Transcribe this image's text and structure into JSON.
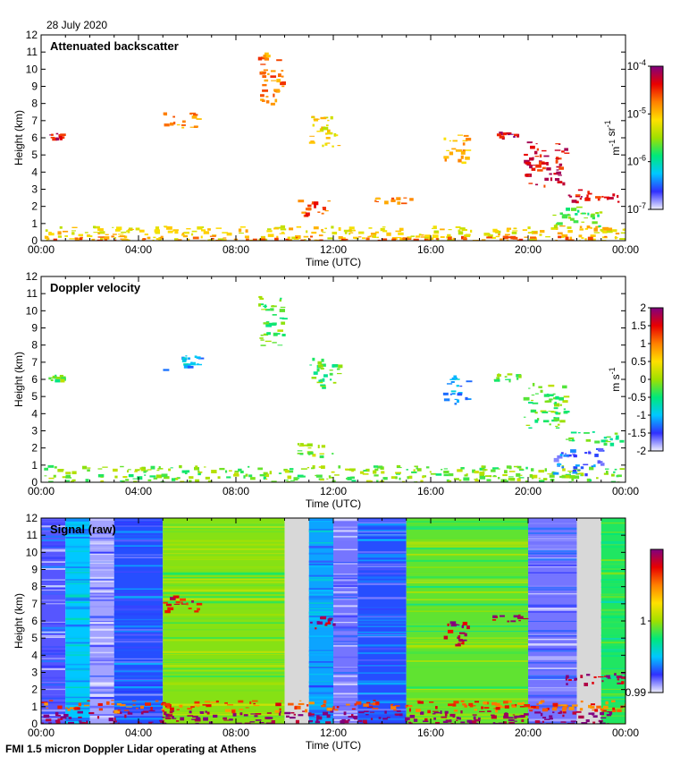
{
  "header": {
    "date": "28 July 2020"
  },
  "footer": {
    "text": "FMI 1.5 micron Doppler Lidar operating at Athens"
  },
  "colors": {
    "background": "#ffffff",
    "missing_data": "#d8d8d8",
    "scale": [
      "#f0f0ff",
      "#3030ff",
      "#00c8ff",
      "#00e87a",
      "#a0e000",
      "#ffe000",
      "#ff8000",
      "#e80000",
      "#800080"
    ]
  },
  "chart_data": [
    {
      "type": "heatmap",
      "title": "Attenuated backscatter",
      "xlabel": "Time (UTC)",
      "ylabel": "Height (km)",
      "xlim": [
        0,
        24
      ],
      "ylim": [
        0,
        12
      ],
      "xticks": [
        "00:00",
        "04:00",
        "08:00",
        "12:00",
        "16:00",
        "20:00",
        "00:00"
      ],
      "yticks": [
        "0",
        "1",
        "2",
        "3",
        "4",
        "5",
        "6",
        "7",
        "8",
        "9",
        "10",
        "11",
        "12"
      ],
      "colorbar": {
        "label": "m-1 sr-1",
        "scale": "log",
        "range": [
          1e-07,
          0.0001
        ],
        "tick_labels": [
          "10-4",
          "10-5",
          "10-6",
          "10-7"
        ]
      },
      "features": [
        {
          "t": [
            0.0,
            24.0
          ],
          "h_bottom": 0.0,
          "h_top": 0.9,
          "level": 0.62
        },
        {
          "t": [
            0.0,
            24.0
          ],
          "h_bottom": 0.0,
          "h_top": 0.3,
          "level": 0.75
        },
        {
          "t": [
            0.3,
            0.8
          ],
          "h_bottom": 6.0,
          "h_top": 6.3,
          "level": 0.9
        },
        {
          "t": [
            5.0,
            6.5
          ],
          "h_bottom": 6.6,
          "h_top": 7.5,
          "level": 0.72
        },
        {
          "t": [
            8.9,
            9.9
          ],
          "h_bottom": 8.0,
          "h_top": 11.0,
          "level": 0.75
        },
        {
          "t": [
            11.0,
            12.2
          ],
          "h_bottom": 5.5,
          "h_top": 7.3,
          "level": 0.62
        },
        {
          "t": [
            10.5,
            12.0
          ],
          "h_bottom": 1.5,
          "h_top": 2.4,
          "level": 0.8
        },
        {
          "t": [
            13.5,
            15.5
          ],
          "h_bottom": 2.2,
          "h_top": 2.6,
          "level": 0.75
        },
        {
          "t": [
            16.5,
            17.5
          ],
          "h_bottom": 4.6,
          "h_top": 6.3,
          "level": 0.7
        },
        {
          "t": [
            18.5,
            19.8
          ],
          "h_bottom": 6.0,
          "h_top": 6.4,
          "level": 0.92
        },
        {
          "t": [
            19.8,
            21.5
          ],
          "h_bottom": 3.2,
          "h_top": 5.8,
          "level": 0.88
        },
        {
          "t": [
            21.5,
            24.0
          ],
          "h_bottom": 2.3,
          "h_top": 3.0,
          "level": 0.88
        },
        {
          "t": [
            21.0,
            23.0
          ],
          "h_bottom": 0.8,
          "h_top": 2.0,
          "level": 0.45
        }
      ]
    },
    {
      "type": "heatmap",
      "title": "Doppler velocity",
      "xlabel": "Time (UTC)",
      "ylabel": "Height (km)",
      "xlim": [
        0,
        24
      ],
      "ylim": [
        0,
        12
      ],
      "xticks": [
        "00:00",
        "04:00",
        "08:00",
        "12:00",
        "16:00",
        "20:00",
        "00:00"
      ],
      "yticks": [
        "0",
        "1",
        "2",
        "3",
        "4",
        "5",
        "6",
        "7",
        "8",
        "9",
        "10",
        "11",
        "12"
      ],
      "colorbar": {
        "label": "m s-1",
        "scale": "linear",
        "range": [
          -2,
          2
        ],
        "tick_labels": [
          "2",
          "1.5",
          "1",
          "0.5",
          "0",
          "-0.5",
          "-1",
          "-1.5",
          "-2"
        ]
      },
      "features": [
        {
          "t": [
            0.0,
            24.0
          ],
          "h_bottom": 0.0,
          "h_top": 1.0,
          "level": 0.47
        },
        {
          "t": [
            0.3,
            0.8
          ],
          "h_bottom": 6.0,
          "h_top": 6.3,
          "level": 0.45
        },
        {
          "t": [
            5.0,
            6.5
          ],
          "h_bottom": 6.6,
          "h_top": 7.5,
          "level": 0.25
        },
        {
          "t": [
            8.9,
            9.9
          ],
          "h_bottom": 8.0,
          "h_top": 11.0,
          "level": 0.45
        },
        {
          "t": [
            11.0,
            12.2
          ],
          "h_bottom": 5.5,
          "h_top": 7.3,
          "level": 0.42
        },
        {
          "t": [
            10.5,
            12.0
          ],
          "h_bottom": 1.5,
          "h_top": 2.4,
          "level": 0.5
        },
        {
          "t": [
            16.5,
            17.5
          ],
          "h_bottom": 4.6,
          "h_top": 6.3,
          "level": 0.22
        },
        {
          "t": [
            18.5,
            19.8
          ],
          "h_bottom": 6.0,
          "h_top": 6.4,
          "level": 0.45
        },
        {
          "t": [
            19.8,
            21.5
          ],
          "h_bottom": 3.2,
          "h_top": 5.8,
          "level": 0.45
        },
        {
          "t": [
            21.5,
            24.0
          ],
          "h_bottom": 2.3,
          "h_top": 3.0,
          "level": 0.4
        },
        {
          "t": [
            21.0,
            23.0
          ],
          "h_bottom": 0.5,
          "h_top": 2.0,
          "level": 0.15
        }
      ]
    },
    {
      "type": "heatmap",
      "title": "Signal (raw)",
      "xlabel": "Time (UTC)",
      "ylabel": "Height (km)",
      "xlim": [
        0,
        24
      ],
      "ylim": [
        0,
        12
      ],
      "xticks": [
        "00:00",
        "04:00",
        "08:00",
        "12:00",
        "16:00",
        "20:00",
        "00:00"
      ],
      "yticks": [
        "0",
        "1",
        "2",
        "3",
        "4",
        "5",
        "6",
        "7",
        "8",
        "9",
        "10",
        "11",
        "12"
      ],
      "colorbar": {
        "label": "",
        "scale": "linear",
        "range": [
          0.99,
          1.01
        ],
        "tick_labels": [
          "1",
          "0.99"
        ]
      },
      "column_bands": [
        {
          "t": [
            0.0,
            1.0
          ],
          "level": 0.1
        },
        {
          "t": [
            1.0,
            2.0
          ],
          "level": 0.25
        },
        {
          "t": [
            2.0,
            3.0
          ],
          "level": 0.05
        },
        {
          "t": [
            3.0,
            5.0
          ],
          "level": 0.15
        },
        {
          "t": [
            5.0,
            10.0
          ],
          "level": 0.48
        },
        {
          "t": [
            10.0,
            11.0
          ],
          "level": -1
        },
        {
          "t": [
            11.0,
            12.0
          ],
          "level": 0.22
        },
        {
          "t": [
            12.0,
            13.0
          ],
          "level": 0.08
        },
        {
          "t": [
            13.0,
            15.0
          ],
          "level": 0.15
        },
        {
          "t": [
            15.0,
            20.0
          ],
          "level": 0.45
        },
        {
          "t": [
            20.0,
            22.0
          ],
          "level": 0.08
        },
        {
          "t": [
            22.0,
            23.0
          ],
          "level": -1
        },
        {
          "t": [
            23.0,
            24.0
          ],
          "level": 0.4
        }
      ],
      "features": [
        {
          "t": [
            0.0,
            24.0
          ],
          "h_bottom": 0.0,
          "h_top": 0.8,
          "level": 1.0
        },
        {
          "t": [
            0.0,
            24.0
          ],
          "h_bottom": 0.8,
          "h_top": 1.4,
          "level": 0.8
        },
        {
          "t": [
            5.0,
            6.5
          ],
          "h_bottom": 6.6,
          "h_top": 7.5,
          "level": 0.88
        },
        {
          "t": [
            11.0,
            12.0
          ],
          "h_bottom": 5.5,
          "h_top": 6.3,
          "level": 0.95
        },
        {
          "t": [
            16.5,
            17.5
          ],
          "h_bottom": 4.6,
          "h_top": 6.3,
          "level": 0.95
        },
        {
          "t": [
            18.5,
            19.8
          ],
          "h_bottom": 6.0,
          "h_top": 6.4,
          "level": 0.95
        },
        {
          "t": [
            21.5,
            24.0
          ],
          "h_bottom": 2.3,
          "h_top": 3.0,
          "level": 0.95
        }
      ]
    }
  ]
}
